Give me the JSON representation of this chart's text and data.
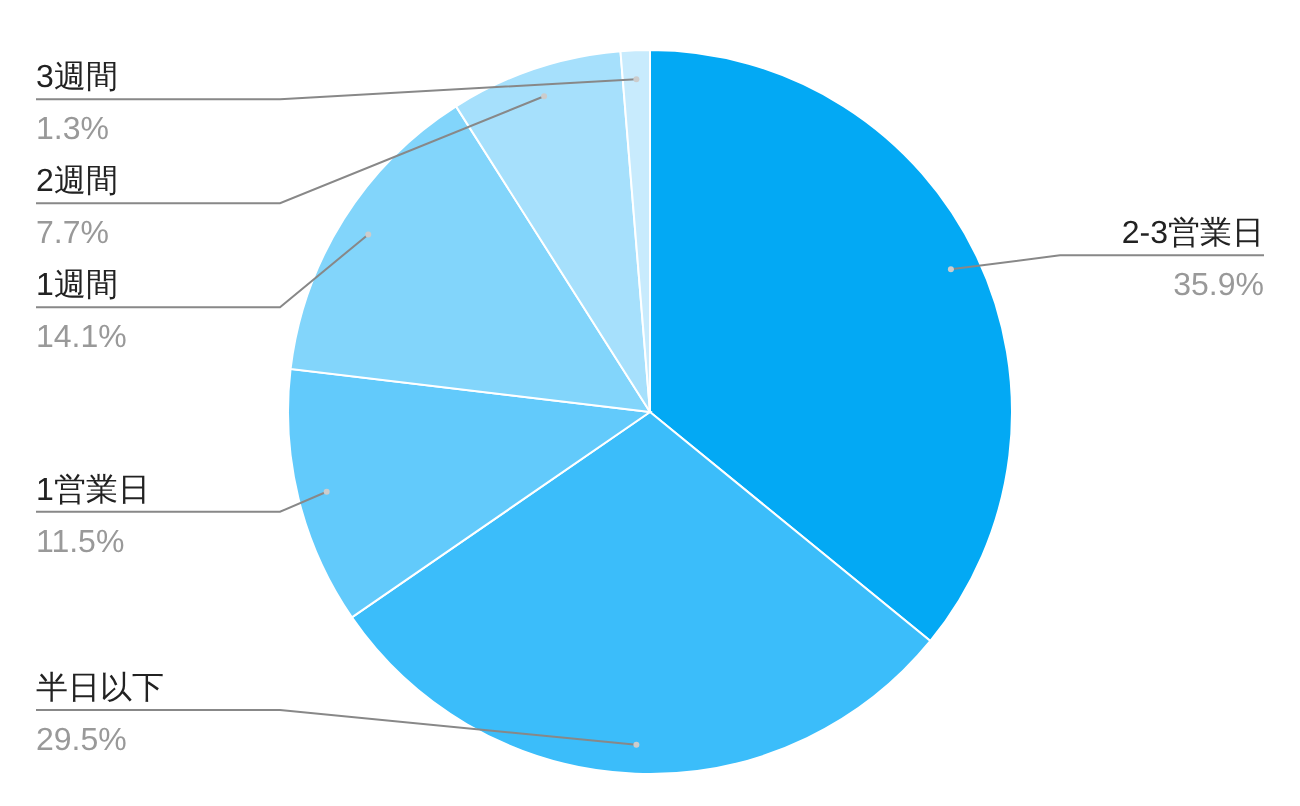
{
  "chart_data": {
    "type": "pie",
    "categories": [
      "2-3営業日",
      "半日以下",
      "1営業日",
      "1週間",
      "2週間",
      "3週間"
    ],
    "values": [
      35.9,
      29.5,
      11.5,
      14.1,
      7.7,
      1.3
    ],
    "value_labels": [
      "35.9%",
      "29.5%",
      "11.5%",
      "14.1%",
      "7.7%",
      "1.3%"
    ],
    "colors": [
      "#03a9f4",
      "#3bbdfa",
      "#62cafb",
      "#82d5fb",
      "#a6e0fc",
      "#c8ebfd"
    ]
  }
}
